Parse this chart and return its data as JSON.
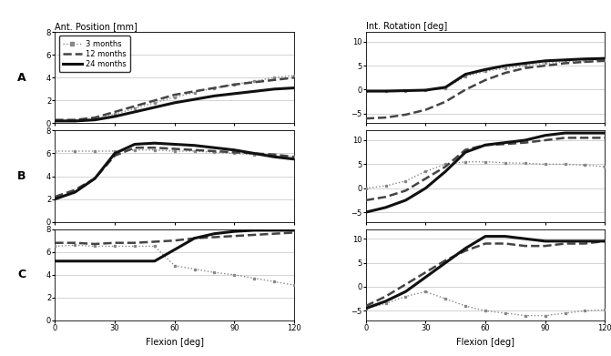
{
  "left_title": "Ant. Position [mm]",
  "right_title": "Int. Rotation [deg]",
  "xlabel": "Flexion [deg]",
  "row_labels": [
    "A",
    "B",
    "C"
  ],
  "legend_labels": [
    "3 months",
    "12 months",
    "24 months"
  ],
  "x": [
    0,
    10,
    20,
    30,
    40,
    50,
    60,
    70,
    80,
    90,
    100,
    110,
    120
  ],
  "left_ylim": [
    0,
    8
  ],
  "left_yticks": [
    0,
    2,
    4,
    6,
    8
  ],
  "right_ylim": [
    -7,
    12
  ],
  "right_yticks": [
    -5,
    0,
    5,
    10
  ],
  "xticks": [
    0,
    30,
    60,
    90,
    120
  ],
  "left_A_3m": [
    0.3,
    0.3,
    0.4,
    0.8,
    1.3,
    1.8,
    2.3,
    2.7,
    3.1,
    3.4,
    3.7,
    4.0,
    4.2
  ],
  "left_A_12m": [
    0.3,
    0.3,
    0.5,
    1.0,
    1.5,
    2.0,
    2.5,
    2.8,
    3.1,
    3.4,
    3.6,
    3.8,
    4.0
  ],
  "left_A_24m": [
    0.2,
    0.2,
    0.3,
    0.6,
    1.0,
    1.4,
    1.8,
    2.1,
    2.4,
    2.6,
    2.8,
    3.0,
    3.1
  ],
  "left_B_3m": [
    6.2,
    6.2,
    6.2,
    6.2,
    6.3,
    6.3,
    6.2,
    6.2,
    6.1,
    6.0,
    5.9,
    5.8,
    5.7
  ],
  "left_B_12m": [
    2.2,
    2.8,
    3.8,
    5.8,
    6.5,
    6.5,
    6.4,
    6.3,
    6.2,
    6.1,
    6.0,
    5.9,
    5.7
  ],
  "left_B_24m": [
    2.0,
    2.6,
    3.8,
    6.0,
    6.8,
    6.9,
    6.8,
    6.7,
    6.5,
    6.3,
    6.0,
    5.7,
    5.5
  ],
  "left_C_3m": [
    6.5,
    6.6,
    6.5,
    6.5,
    6.5,
    6.5,
    4.8,
    4.5,
    4.2,
    4.0,
    3.7,
    3.4,
    3.1
  ],
  "left_C_12m": [
    6.8,
    6.8,
    6.7,
    6.8,
    6.8,
    6.9,
    7.0,
    7.2,
    7.3,
    7.4,
    7.5,
    7.6,
    7.7
  ],
  "left_C_24m": [
    5.2,
    5.2,
    5.2,
    5.2,
    5.2,
    5.2,
    6.2,
    7.2,
    7.6,
    7.8,
    7.9,
    7.9,
    7.9
  ],
  "right_A_3m": [
    -0.3,
    -0.3,
    -0.2,
    -0.1,
    0.3,
    2.8,
    3.8,
    4.5,
    5.0,
    5.5,
    5.8,
    6.0,
    6.2
  ],
  "right_A_12m": [
    -6.0,
    -5.8,
    -5.2,
    -4.2,
    -2.5,
    0.0,
    2.0,
    3.5,
    4.5,
    5.0,
    5.5,
    5.8,
    6.0
  ],
  "right_A_24m": [
    -0.3,
    -0.3,
    -0.2,
    -0.1,
    0.5,
    3.2,
    4.2,
    5.0,
    5.5,
    6.0,
    6.2,
    6.4,
    6.5
  ],
  "right_B_3m": [
    0.0,
    0.5,
    1.5,
    3.5,
    5.0,
    5.5,
    5.5,
    5.3,
    5.2,
    5.0,
    5.0,
    4.8,
    4.5
  ],
  "right_B_12m": [
    -2.5,
    -1.8,
    -0.5,
    2.0,
    4.5,
    8.0,
    9.0,
    9.2,
    9.5,
    10.0,
    10.5,
    10.5,
    10.5
  ],
  "right_B_24m": [
    -5.0,
    -4.0,
    -2.5,
    0.0,
    3.5,
    7.5,
    9.0,
    9.5,
    10.0,
    11.0,
    11.5,
    11.5,
    11.5
  ],
  "right_C_3m": [
    -4.5,
    -3.5,
    -2.0,
    -1.0,
    -2.5,
    -4.0,
    -5.0,
    -5.5,
    -6.0,
    -6.0,
    -5.5,
    -5.0,
    -4.8
  ],
  "right_C_12m": [
    -4.0,
    -2.0,
    0.5,
    3.0,
    5.5,
    7.5,
    9.0,
    9.0,
    8.5,
    8.5,
    9.0,
    9.0,
    9.5
  ],
  "right_C_24m": [
    -4.5,
    -3.0,
    -1.0,
    2.0,
    5.0,
    8.0,
    10.5,
    10.5,
    10.0,
    9.5,
    9.5,
    9.5,
    9.5
  ],
  "color_3m": "#888888",
  "color_12m": "#444444",
  "color_24m": "#111111",
  "bg_color": "#ffffff",
  "grid_color": "#cccccc"
}
